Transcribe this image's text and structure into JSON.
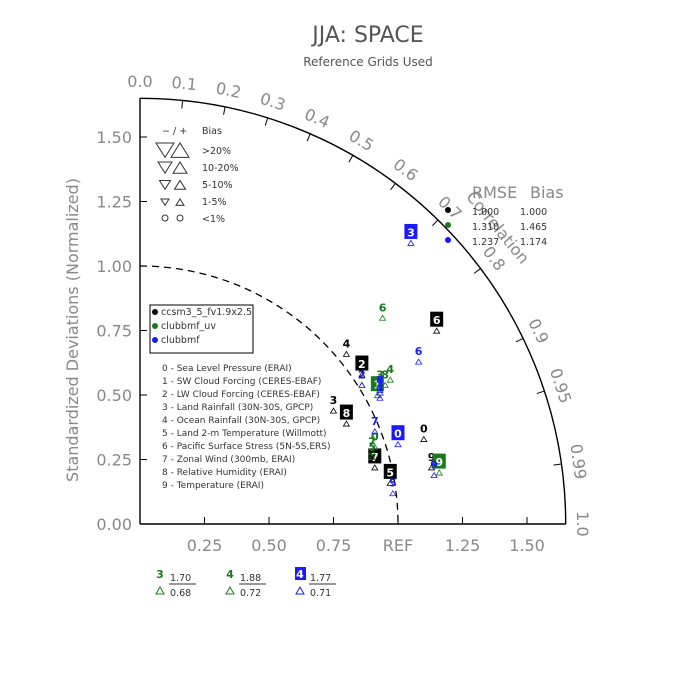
{
  "chart_data": {
    "type": "scatter",
    "title": "JJA: SPACE",
    "subtitle": "Reference Grids Used",
    "ylabel": "Standardized Deviations (Normalized)",
    "ref_label": "REF",
    "x_ticks": [
      "0.25",
      "0.50",
      "0.75",
      "REF",
      "1.25",
      "1.50"
    ],
    "y_ticks": [
      "0.00",
      "0.25",
      "0.50",
      "0.75",
      "1.00",
      "1.25",
      "1.50"
    ],
    "correlation_ticks": [
      "0.0",
      "0.1",
      "0.2",
      "0.3",
      "0.4",
      "0.5",
      "0.6",
      "0.7",
      "0.8",
      "0.9",
      "0.95",
      "0.99",
      "1.0"
    ],
    "correlation_label": "Correlation",
    "bias_legend": {
      "header_sign": "− / +",
      "header_label": "Bias",
      "rows": [
        ">20%",
        "10-20%",
        "5-10%",
        "1-5%",
        "<1%"
      ]
    },
    "rmse_header": "RMSE",
    "bias_header": "Bias",
    "case_table": [
      {
        "rmse": "1.000",
        "bias": "1.000",
        "color": "#000000"
      },
      {
        "rmse": "1.310",
        "bias": "1.465",
        "color": "#1a7a1a"
      },
      {
        "rmse": "1.237",
        "bias": "1.174",
        "color": "#1a1aff"
      }
    ],
    "cases": [
      {
        "name": "ccsm3_5_fv1.9x2.5",
        "color": "#000000"
      },
      {
        "name": "clubbmf_uv",
        "color": "#1a7a1a"
      },
      {
        "name": "clubbmf",
        "color": "#1a1aff"
      }
    ],
    "variables": [
      "0 - Sea Level Pressure (ERAI)",
      "1 - SW Cloud Forcing (CERES-EBAF)",
      "2 - LW Cloud Forcing (CERES-EBAF)",
      "3 - Land Rainfall (30N-30S, GPCP)",
      "4 - Ocean Rainfall (30N-30S, GPCP)",
      "5 - Land 2-m Temperature (Willmott)",
      "6 - Pacific Surface Stress (5N-5S,ERS)",
      "7 - Zonal Wind (300mb, ERAI)",
      "8 - Relative Humidity (ERAI)",
      "9 - Temperature (ERAI)"
    ],
    "points": [
      {
        "case": 0,
        "var": "0",
        "x": 1.1,
        "y": 0.37,
        "boxed": false
      },
      {
        "case": 0,
        "var": "2",
        "x": 0.86,
        "y": 0.62,
        "boxed": true
      },
      {
        "case": 0,
        "var": "3",
        "x": 0.75,
        "y": 0.48,
        "boxed": false
      },
      {
        "case": 0,
        "var": "4",
        "x": 0.8,
        "y": 0.7,
        "boxed": false
      },
      {
        "case": 0,
        "var": "5",
        "x": 0.97,
        "y": 0.2,
        "boxed": true
      },
      {
        "case": 0,
        "var": "6",
        "x": 1.15,
        "y": 0.79,
        "boxed": true
      },
      {
        "case": 0,
        "var": "7",
        "x": 0.91,
        "y": 0.26,
        "boxed": true
      },
      {
        "case": 0,
        "var": "8",
        "x": 0.8,
        "y": 0.43,
        "boxed": true
      },
      {
        "case": 0,
        "var": "9",
        "x": 1.13,
        "y": 0.26,
        "boxed": false
      },
      {
        "case": 1,
        "var": "0",
        "x": 0.91,
        "y": 0.34,
        "boxed": false
      },
      {
        "case": 1,
        "var": "1",
        "x": 0.92,
        "y": 0.54,
        "boxed": true
      },
      {
        "case": 1,
        "var": "2",
        "x": 0.86,
        "y": 0.58,
        "boxed": false
      },
      {
        "case": 1,
        "var": "3",
        "x": 0.93,
        "y": 0.58,
        "boxed": false
      },
      {
        "case": 1,
        "var": "4",
        "x": 0.97,
        "y": 0.6,
        "boxed": false
      },
      {
        "case": 1,
        "var": "5",
        "x": 0.9,
        "y": 0.3,
        "boxed": false
      },
      {
        "case": 1,
        "var": "6",
        "x": 0.94,
        "y": 0.84,
        "boxed": false
      },
      {
        "case": 1,
        "var": "7",
        "x": 0.9,
        "y": 0.32,
        "boxed": false
      },
      {
        "case": 1,
        "var": "8",
        "x": 0.95,
        "y": 0.58,
        "boxed": false
      },
      {
        "case": 1,
        "var": "9",
        "x": 1.16,
        "y": 0.24,
        "boxed": true
      },
      {
        "case": 2,
        "var": "0",
        "x": 1.0,
        "y": 0.35,
        "boxed": true
      },
      {
        "case": 2,
        "var": "1",
        "x": 0.93,
        "y": 0.55,
        "boxed": false
      },
      {
        "case": 2,
        "var": "2",
        "x": 0.86,
        "y": 0.58,
        "boxed": false
      },
      {
        "case": 2,
        "var": "3",
        "x": 1.05,
        "y": 1.13,
        "boxed": true
      },
      {
        "case": 2,
        "var": "4",
        "x": 0.93,
        "y": 0.53,
        "boxed": false
      },
      {
        "case": 2,
        "var": "5",
        "x": 0.98,
        "y": 0.16,
        "boxed": false
      },
      {
        "case": 2,
        "var": "6",
        "x": 1.08,
        "y": 0.67,
        "boxed": false
      },
      {
        "case": 2,
        "var": "7",
        "x": 0.91,
        "y": 0.4,
        "boxed": false
      },
      {
        "case": 2,
        "var": "8",
        "x": 0.93,
        "y": 0.56,
        "boxed": false
      },
      {
        "case": 2,
        "var": "9",
        "x": 1.14,
        "y": 0.23,
        "boxed": false
      }
    ],
    "summary": [
      {
        "num": "3",
        "top": "1.70",
        "bottom": "0.68",
        "color": "#1a7a1a",
        "boxed": false
      },
      {
        "num": "4",
        "top": "1.88",
        "bottom": "0.72",
        "color": "#1a7a1a",
        "boxed": false
      },
      {
        "num": "4",
        "top": "1.77",
        "bottom": "0.71",
        "color": "#1a1aff",
        "boxed": true
      }
    ],
    "xlim": [
      0,
      1.65
    ],
    "ylim": [
      0,
      1.65
    ]
  }
}
